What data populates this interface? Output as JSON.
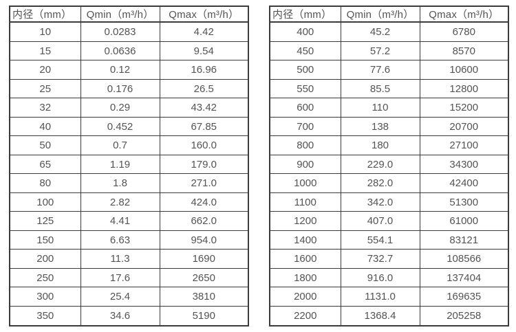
{
  "colors": {
    "background": "#ffffff",
    "border": "#3b3b3b",
    "text": "#535353"
  },
  "tables": [
    {
      "headers": [
        "内径（mm）",
        "Qmin（m³/h）",
        "Qmax（m³/h）"
      ],
      "rows": [
        [
          "10",
          "0.0283",
          "4.42"
        ],
        [
          "15",
          "0.0636",
          "9.54"
        ],
        [
          "20",
          "0.12",
          "16.96"
        ],
        [
          "25",
          "0.176",
          "26.5"
        ],
        [
          "32",
          "0.29",
          "43.42"
        ],
        [
          "40",
          "0.452",
          "67.85"
        ],
        [
          "50",
          "0.7",
          "160.0"
        ],
        [
          "65",
          "1.19",
          "179.0"
        ],
        [
          "80",
          "1.8",
          "271.0"
        ],
        [
          "100",
          "2.82",
          "424.0"
        ],
        [
          "125",
          "4.41",
          "662.0"
        ],
        [
          "150",
          "6.63",
          "954.0"
        ],
        [
          "200",
          "11.3",
          "1690"
        ],
        [
          "250",
          "17.6",
          "2650"
        ],
        [
          "300",
          "25.4",
          "3810"
        ],
        [
          "350",
          "34.6",
          "5190"
        ]
      ]
    },
    {
      "headers": [
        "内径（mm）",
        "Qmin（m³/h）",
        "Qmax（m³/h）"
      ],
      "rows": [
        [
          "400",
          "45.2",
          "6780"
        ],
        [
          "450",
          "57.2",
          "8570"
        ],
        [
          "500",
          "77.6",
          "10600"
        ],
        [
          "550",
          "85.5",
          "12800"
        ],
        [
          "600",
          "110",
          "15200"
        ],
        [
          "700",
          "138",
          "20700"
        ],
        [
          "800",
          "180",
          "27100"
        ],
        [
          "900",
          "229.0",
          "34300"
        ],
        [
          "1000",
          "282.0",
          "42400"
        ],
        [
          "1100",
          "342.0",
          "51300"
        ],
        [
          "1200",
          "407.0",
          "61000"
        ],
        [
          "1400",
          "554.1",
          "83121"
        ],
        [
          "1600",
          "732.7",
          "108566"
        ],
        [
          "1800",
          "916.0",
          "137404"
        ],
        [
          "2000",
          "1131.0",
          "169635"
        ],
        [
          "2200",
          "1368.4",
          "205258"
        ]
      ]
    }
  ]
}
